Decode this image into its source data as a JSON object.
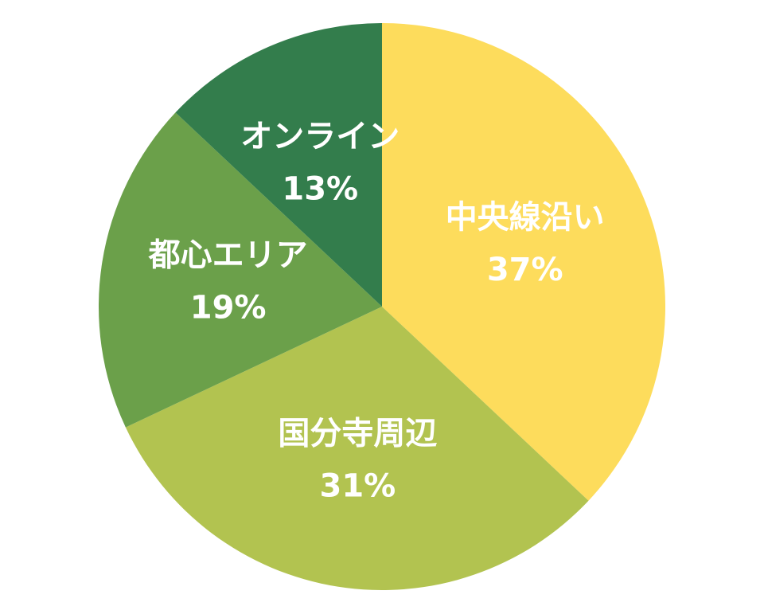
{
  "chart_data": {
    "type": "pie",
    "categories": [
      "中央線沿い",
      "国分寺周辺",
      "都心エリア",
      "オンライン"
    ],
    "values": [
      37,
      31,
      19,
      13
    ],
    "value_labels": [
      "37%",
      "31%",
      "19%",
      "13%"
    ],
    "colors": [
      "#fddc5c",
      "#b2c350",
      "#6ba04a",
      "#337d4c"
    ]
  }
}
